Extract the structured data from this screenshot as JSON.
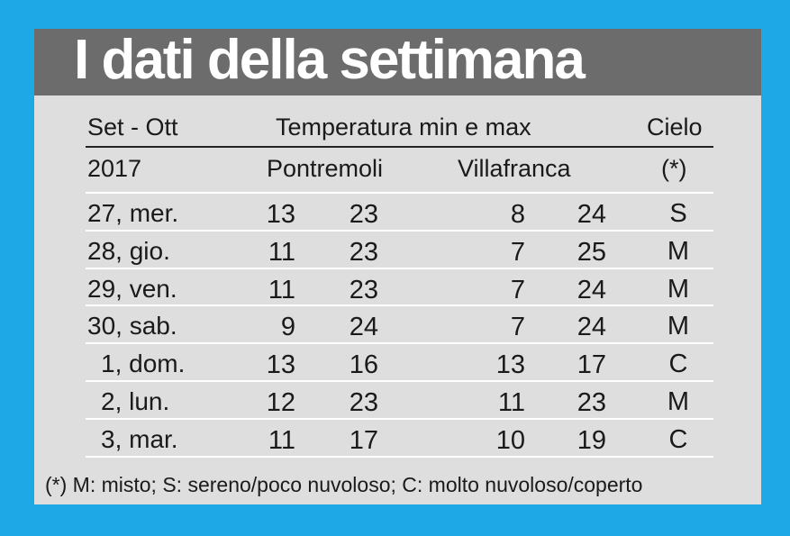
{
  "header": {
    "title": "I dati della settimana"
  },
  "table": {
    "header_row1": [
      "Set - Ott",
      "Temperatura min e max",
      "Cielo"
    ],
    "header_row2": [
      "2017",
      "Pontremoli",
      "Villafranca",
      "(*)"
    ],
    "rows": [
      [
        "27, mer.",
        13,
        23,
        8,
        24,
        "S"
      ],
      [
        "28, gio.",
        11,
        23,
        7,
        25,
        "M"
      ],
      [
        "29, ven.",
        11,
        23,
        7,
        24,
        "M"
      ],
      [
        "30, sab.",
        9,
        24,
        7,
        24,
        "M"
      ],
      [
        "1, dom.",
        13,
        16,
        13,
        17,
        "C"
      ],
      [
        "2, lun.",
        12,
        23,
        11,
        23,
        "M"
      ],
      [
        "3, mar.",
        11,
        17,
        10,
        19,
        "C"
      ]
    ]
  },
  "footnote": "(*) M: misto; S: sereno/poco nuvoloso; C: molto nuvoloso/coperto"
}
